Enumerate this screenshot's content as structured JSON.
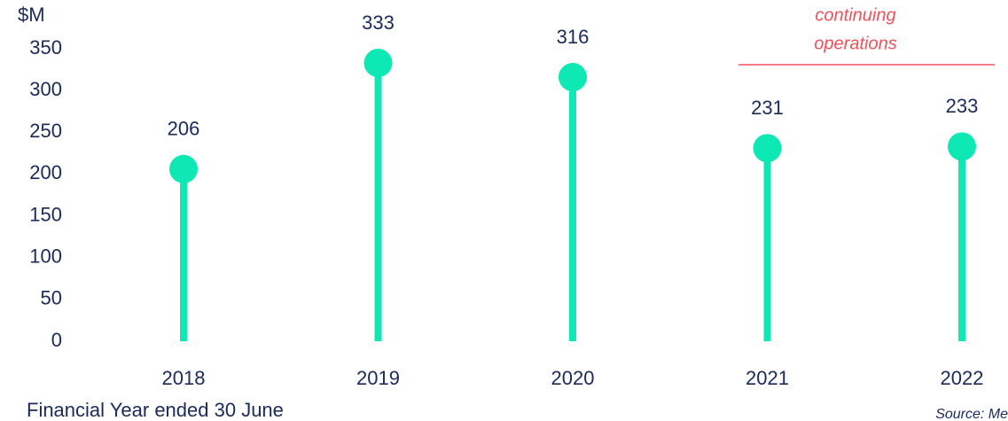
{
  "chart_data": {
    "type": "lollipop",
    "y_unit": "$M",
    "x_label": "Financial Year ended 30 June",
    "annotation": [
      "continuing",
      "operations"
    ],
    "source": "Source: Me",
    "categories": [
      "2018",
      "2019",
      "2020",
      "2021",
      "2022"
    ],
    "values": [
      206,
      333,
      316,
      231,
      233
    ],
    "color": "#0ee8b4",
    "annotation_color": "#f0525a",
    "ylim": [
      0,
      350
    ],
    "yticks": [
      0,
      50,
      100,
      150,
      200,
      250,
      300,
      350
    ],
    "grid": false
  }
}
